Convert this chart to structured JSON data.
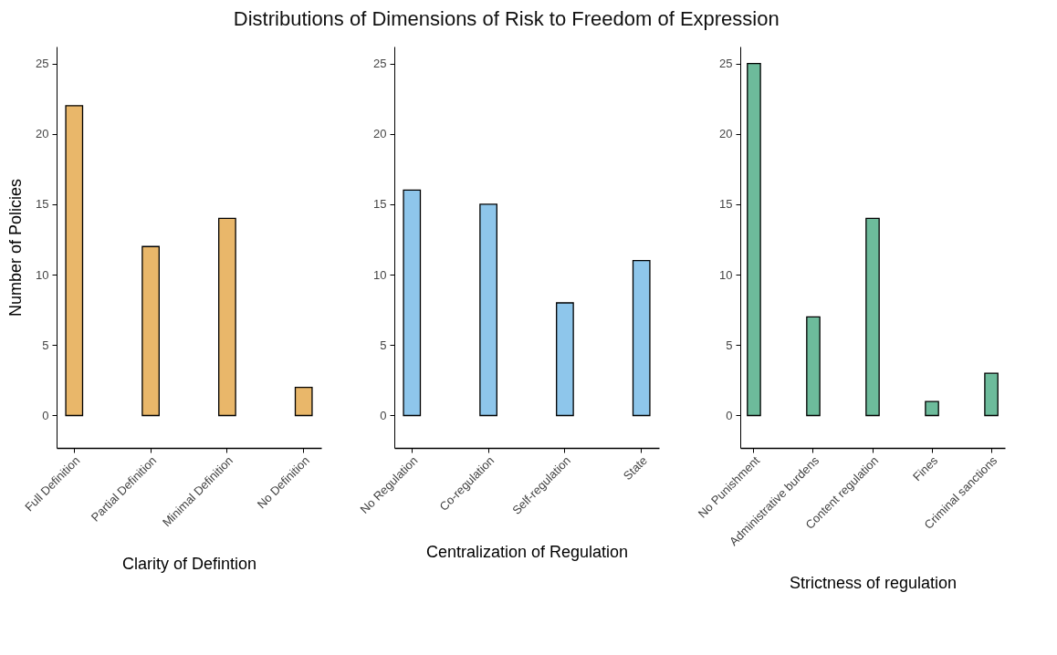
{
  "chart_data": [
    {
      "type": "bar",
      "title": "Distributions of Dimensions of Risk to Freedom of Expression",
      "xlabel": "Clarity of Defintion",
      "ylabel": "Number of Policies",
      "categories": [
        "Full Definition",
        "Partial Definition",
        "Minimal Definition",
        "No Definition"
      ],
      "values": [
        22,
        12,
        14,
        2
      ],
      "color": "#e9b76a",
      "ylim": [
        -2.3,
        26.2
      ],
      "yticks": [
        0,
        5,
        10,
        15,
        20,
        25
      ],
      "grid": false
    },
    {
      "type": "bar",
      "xlabel": "Centralization of Regulation",
      "categories": [
        "No Regulation",
        "Co-regulation",
        "Self-regulation",
        "State"
      ],
      "values": [
        16,
        15,
        8,
        11
      ],
      "color": "#8ec6eb",
      "ylim": [
        -2.3,
        26.2
      ],
      "yticks": [
        0,
        5,
        10,
        15,
        20,
        25
      ],
      "grid": false
    },
    {
      "type": "bar",
      "xlabel": "Strictness of regulation",
      "categories": [
        "No Punishment",
        "Administrative burdens",
        "Content regulation",
        "Fines",
        "Criminal sanctions"
      ],
      "values": [
        25,
        7,
        14,
        1,
        3
      ],
      "color": "#6dbb9b",
      "ylim": [
        -2.3,
        26.2
      ],
      "yticks": [
        0,
        5,
        10,
        15,
        20,
        25
      ],
      "grid": false
    }
  ]
}
